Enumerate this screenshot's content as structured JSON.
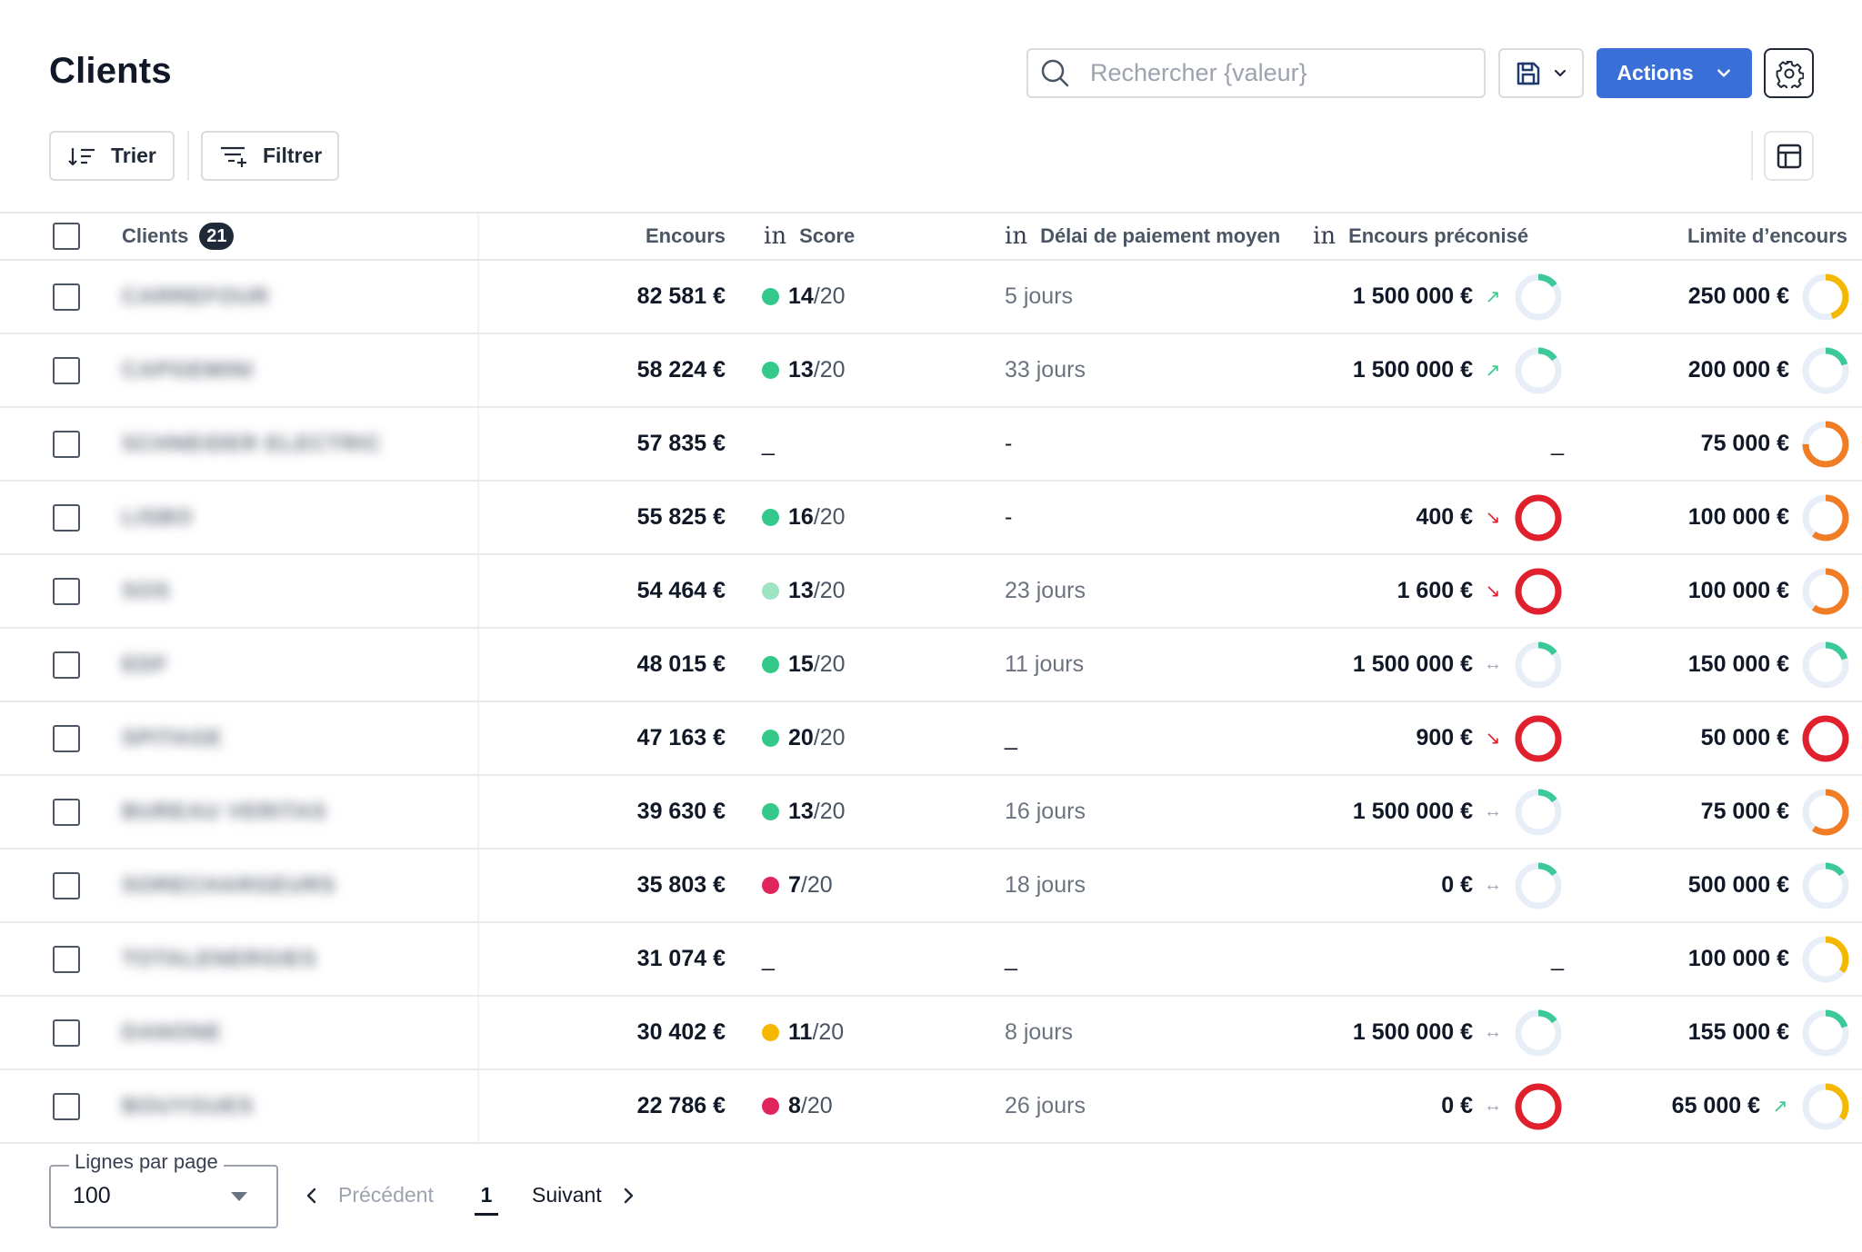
{
  "header": {
    "title": "Clients",
    "search_placeholder": "Rechercher {valeur}",
    "actions_label": "Actions"
  },
  "toolbar": {
    "sort_label": "Trier",
    "filter_label": "Filtrer"
  },
  "table": {
    "columns": {
      "clients": "Clients",
      "clients_count": "21",
      "encours": "Encours",
      "score": "Score",
      "delai": "Délai de paiement moyen",
      "encours_preconise": "Encours préconisé",
      "limite": "Limite d’encours"
    },
    "rows": [
      {
        "client": "CARREFOUR",
        "encours": "82 581 €",
        "score_dot": "#34c98a",
        "score": "14",
        "score_den": "/20",
        "delai": "5 jours",
        "preconise": "1 500 000 €",
        "trend": "up",
        "preconise_level": 0.15,
        "preconise_color": "#3cc99a",
        "limite": "250 000 €",
        "limite_trend": "",
        "limite_level": 0.45,
        "limite_color": "#f5b800"
      },
      {
        "client": "CAPGEMINI",
        "encours": "58 224 €",
        "score_dot": "#34c98a",
        "score": "13",
        "score_den": "/20",
        "delai": "33 jours",
        "preconise": "1 500 000 €",
        "trend": "up",
        "preconise_level": 0.15,
        "preconise_color": "#3cc99a",
        "limite": "200 000 €",
        "limite_trend": "",
        "limite_level": 0.2,
        "limite_color": "#3cc99a"
      },
      {
        "client": "SCHNEIDER ELECTRIC",
        "encours": "57 835 €",
        "score_dot": "",
        "score": "_",
        "score_den": "",
        "delai": "-",
        "preconise": "_",
        "trend": "",
        "preconise_level": null,
        "preconise_color": "",
        "limite": "75 000 €",
        "limite_trend": "",
        "limite_level": 0.75,
        "limite_color": "#f17c26"
      },
      {
        "client": "LISBO",
        "encours": "55 825 €",
        "score_dot": "#34c98a",
        "score": "16",
        "score_den": "/20",
        "delai": "-",
        "preconise": "400 €",
        "trend": "down",
        "preconise_level": 1.0,
        "preconise_color": "#e0202c",
        "limite": "100 000 €",
        "limite_trend": "",
        "limite_level": 0.6,
        "limite_color": "#f17c26"
      },
      {
        "client": "SOS",
        "encours": "54 464 €",
        "score_dot": "#9fe3c3",
        "score": "13",
        "score_den": "/20",
        "delai": "23 jours",
        "preconise": "1 600 €",
        "trend": "down",
        "preconise_level": 1.0,
        "preconise_color": "#e0202c",
        "limite": "100 000 €",
        "limite_trend": "",
        "limite_level": 0.6,
        "limite_color": "#f17c26"
      },
      {
        "client": "EDF",
        "encours": "48 015 €",
        "score_dot": "#34c98a",
        "score": "15",
        "score_den": "/20",
        "delai": "11 jours",
        "preconise": "1 500 000 €",
        "trend": "flat",
        "preconise_level": 0.15,
        "preconise_color": "#3cc99a",
        "limite": "150 000 €",
        "limite_trend": "",
        "limite_level": 0.2,
        "limite_color": "#3cc99a"
      },
      {
        "client": "SPITAGE",
        "encours": "47 163 €",
        "score_dot": "#34c98a",
        "score": "20",
        "score_den": "/20",
        "delai": "_",
        "preconise": "900 €",
        "trend": "down",
        "preconise_level": 1.0,
        "preconise_color": "#e0202c",
        "limite": "50 000 €",
        "limite_trend": "",
        "limite_level": 1.0,
        "limite_color": "#e0202c"
      },
      {
        "client": "BUREAU VERITAS",
        "encours": "39 630 €",
        "score_dot": "#34c98a",
        "score": "13",
        "score_den": "/20",
        "delai": "16 jours",
        "preconise": "1 500 000 €",
        "trend": "flat",
        "preconise_level": 0.15,
        "preconise_color": "#3cc99a",
        "limite": "75 000 €",
        "limite_trend": "",
        "limite_level": 0.6,
        "limite_color": "#f17c26"
      },
      {
        "client": "SORECHARGEURS",
        "encours": "35 803 €",
        "score_dot": "#e0245e",
        "score": "7",
        "score_den": "/20",
        "delai": "18 jours",
        "preconise": "0 €",
        "trend": "flat",
        "preconise_level": 0.15,
        "preconise_color": "#3cc99a",
        "limite": "500 000 €",
        "limite_trend": "",
        "limite_level": 0.15,
        "limite_color": "#3cc99a"
      },
      {
        "client": "TOTALENERGIES",
        "encours": "31 074 €",
        "score_dot": "",
        "score": "_",
        "score_den": "",
        "delai": "_",
        "preconise": "_",
        "trend": "",
        "preconise_level": null,
        "preconise_color": "",
        "limite": "100 000 €",
        "limite_trend": "",
        "limite_level": 0.35,
        "limite_color": "#f5b800"
      },
      {
        "client": "DANONE",
        "encours": "30 402 €",
        "score_dot": "#f5b800",
        "score": "11",
        "score_den": "/20",
        "delai": "8 jours",
        "preconise": "1 500 000 €",
        "trend": "flat",
        "preconise_level": 0.15,
        "preconise_color": "#3cc99a",
        "limite": "155 000 €",
        "limite_trend": "",
        "limite_level": 0.2,
        "limite_color": "#3cc99a"
      },
      {
        "client": "BOUYGUES",
        "encours": "22 786 €",
        "score_dot": "#e0245e",
        "score": "8",
        "score_den": "/20",
        "delai": "26 jours",
        "preconise": "0 €",
        "trend": "flat",
        "preconise_level": 1.0,
        "preconise_color": "#e0202c",
        "limite": "65 000 €",
        "limite_trend": "up",
        "limite_level": 0.35,
        "limite_color": "#f5b800"
      }
    ]
  },
  "pagination": {
    "rows_per_page_label": "Lignes par page",
    "rows_per_page_value": "100",
    "prev_label": "Précédent",
    "current_page": "1",
    "next_label": "Suivant"
  }
}
